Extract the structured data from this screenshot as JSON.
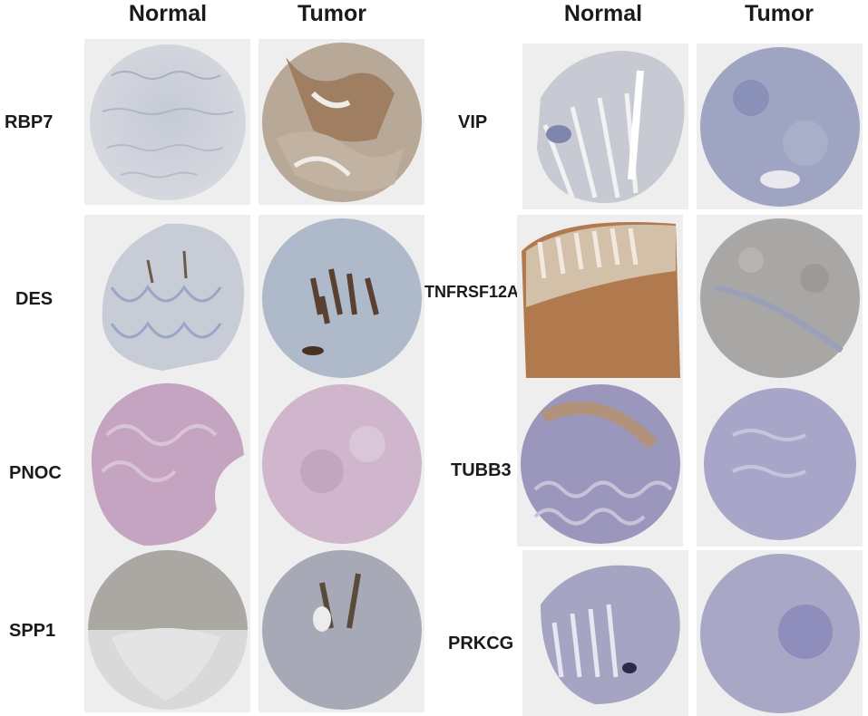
{
  "column_headers": {
    "left_normal": "Normal",
    "left_tumor": "Tumor",
    "right_normal": "Normal",
    "right_tumor": "Tumor"
  },
  "left_genes": [
    {
      "label": "RBP7"
    },
    {
      "label": "DES"
    },
    {
      "label": "PNOC"
    },
    {
      "label": "SPP1"
    }
  ],
  "right_genes": [
    {
      "label": "VIP"
    },
    {
      "label": "TNFRSF12A"
    },
    {
      "label": "TUBB3"
    },
    {
      "label": "PRKCG"
    }
  ],
  "colors": {
    "panel_background": "#eeeeee",
    "stain_blue": "#7a86b8",
    "stain_brown": "#9a6a45",
    "stain_purple": "#b68fb2"
  }
}
